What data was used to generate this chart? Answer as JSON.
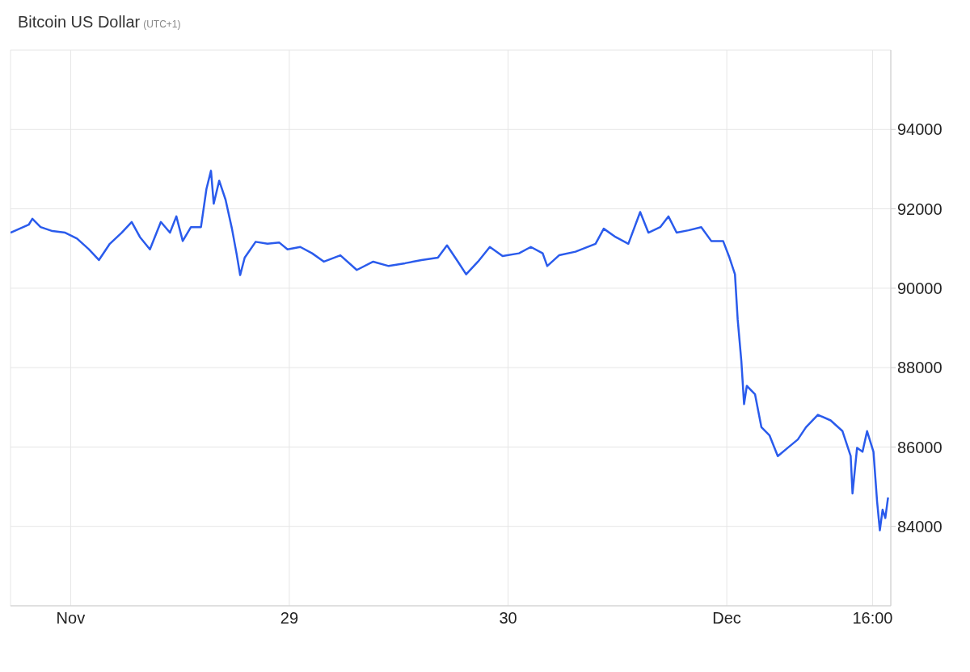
{
  "chart_data": {
    "type": "line",
    "title": "Bitcoin US Dollar",
    "subtitle": "(UTC+1)",
    "x": [
      "--11-27T17:24",
      "--11-27T18:00",
      "--11-27T19:24",
      "--11-27T19:48",
      "--11-27T20:42",
      "--11-27T22:00",
      "--11-27T23:24",
      "--11-28T00:42",
      "--11-28T02:00",
      "--11-28T03:06",
      "--11-28T04:18",
      "--11-28T05:36",
      "--11-28T06:42",
      "--11-28T07:36",
      "--11-28T08:42",
      "--11-28T09:54",
      "--11-28T10:54",
      "--11-28T11:36",
      "--11-28T12:18",
      "--11-28T13:12",
      "--11-28T14:18",
      "--11-28T14:54",
      "--11-28T15:24",
      "--11-28T15:42",
      "--11-28T16:18",
      "--11-28T17:00",
      "--11-28T17:42",
      "--11-28T18:12",
      "--11-28T18:36",
      "--11-28T19:06",
      "--11-28T20:18",
      "--11-28T21:36",
      "--11-28T22:54",
      "--11-28T23:48",
      "--11-29T01:12",
      "--11-29T02:30",
      "--11-29T03:48",
      "--11-29T05:36",
      "--11-29T07:24",
      "--11-29T09:12",
      "--11-29T10:54",
      "--11-29T12:42",
      "--11-29T14:30",
      "--11-29T16:18",
      "--11-29T17:18",
      "--11-29T18:30",
      "--11-29T19:24",
      "--11-29T20:42",
      "--11-29T22:00",
      "--11-29T23:24",
      "--11-30T01:12",
      "--11-30T02:30",
      "--11-30T03:48",
      "--11-30T04:18",
      "--11-30T05:36",
      "--11-30T07:24",
      "--11-30T09:36",
      "--11-30T10:30",
      "--11-30T11:48",
      "--11-30T13:12",
      "--11-30T14:30",
      "--11-30T15:24",
      "--11-30T16:42",
      "--11-30T17:36",
      "--11-30T18:30",
      "--11-30T19:48",
      "--11-30T21:12",
      "--11-30T22:18",
      "--11-30T23:36",
      "--12-01T00:18",
      "--12-01T00:54",
      "--12-01T01:12",
      "--12-01T01:36",
      "--12-01T01:54",
      "--12-01T02:12",
      "--12-01T03:06",
      "--12-01T03:48",
      "--12-01T04:42",
      "--12-01T05:36",
      "--12-01T06:42",
      "--12-01T07:48",
      "--12-01T08:42",
      "--12-01T10:00",
      "--12-01T11:24",
      "--12-01T12:42",
      "--12-01T13:36",
      "--12-01T13:48",
      "--12-01T14:18",
      "--12-01T14:54",
      "--12-01T15:24",
      "--12-01T16:06",
      "--12-01T16:30",
      "--12-01T16:48",
      "--12-01T17:06",
      "--12-01T17:24",
      "--12-01T17:42"
    ],
    "series": [
      {
        "color": "#2a5bec",
        "values": [
          91400,
          91460,
          91600,
          91750,
          91540,
          91440,
          91400,
          91250,
          90980,
          90710,
          91120,
          91400,
          91670,
          91290,
          90980,
          91670,
          91400,
          91810,
          91190,
          91540,
          91540,
          92500,
          92960,
          92130,
          92710,
          92230,
          91500,
          90880,
          90330,
          90770,
          91170,
          91120,
          91150,
          90980,
          91040,
          90880,
          90670,
          90830,
          90460,
          90670,
          90560,
          90630,
          90710,
          90770,
          91080,
          90670,
          90350,
          90670,
          91040,
          90810,
          90880,
          91040,
          90880,
          90560,
          90830,
          90920,
          91120,
          91500,
          91290,
          91120,
          91920,
          91400,
          91540,
          91810,
          91400,
          91460,
          91540,
          91190,
          91190,
          90770,
          90350,
          89210,
          88170,
          87080,
          87540,
          87330,
          86500,
          86290,
          85770,
          85980,
          86190,
          86500,
          86810,
          86670,
          86400,
          85770,
          84830,
          85980,
          85880,
          86400,
          85880,
          84620,
          83900,
          84420,
          84210,
          84730
        ]
      }
    ],
    "xlim": [
      "--11-27T17:24",
      "--12-01T18:00"
    ],
    "xticks": [
      {
        "value": "--11-28T00:00",
        "label": "Nov"
      },
      {
        "value": "--11-29T00:00",
        "label": "29"
      },
      {
        "value": "--11-30T00:00",
        "label": "30"
      },
      {
        "value": "--12-01T00:00",
        "label": "Dec"
      },
      {
        "value": "--12-01T16:00",
        "label": "16:00"
      }
    ],
    "ylim": [
      82000,
      96000
    ],
    "yticks": [
      84000,
      86000,
      88000,
      90000,
      92000,
      94000
    ],
    "grid": true
  }
}
